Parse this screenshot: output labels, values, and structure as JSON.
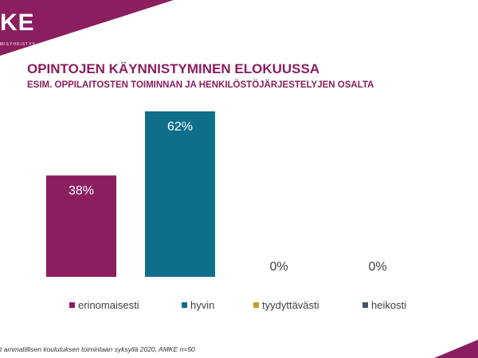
{
  "slide": {
    "logo": "KE",
    "logo_sub": "MISYHDISTYS",
    "source": "t ammatillisen koulutuksen toimintaan syksyllä 2020, AMKE n=50",
    "brand_color": "#8b1e5f"
  },
  "chart_data": {
    "type": "bar",
    "title": "OPINTOJEN KÄYNNISTYMINEN ELOKUUSSA",
    "subtitle": "ESIM. OPPILAITOSTEN TOIMINNAN JA HENKILÖSTÖJÄRJESTELYJEN OSALTA",
    "categories": [
      "erinomaisesti",
      "hyvin",
      "tyydyttävästi",
      "heikosti"
    ],
    "values": [
      38,
      62,
      0,
      0
    ],
    "data_labels": [
      "38%",
      "62%",
      "0%",
      "0%"
    ],
    "colors": [
      "#8b1e5f",
      "#0f6e8a",
      "#c99a2e",
      "#44546a"
    ],
    "ylim": [
      0,
      62
    ],
    "grid": false,
    "legend_position": "bottom",
    "xlabel": "",
    "ylabel": ""
  }
}
